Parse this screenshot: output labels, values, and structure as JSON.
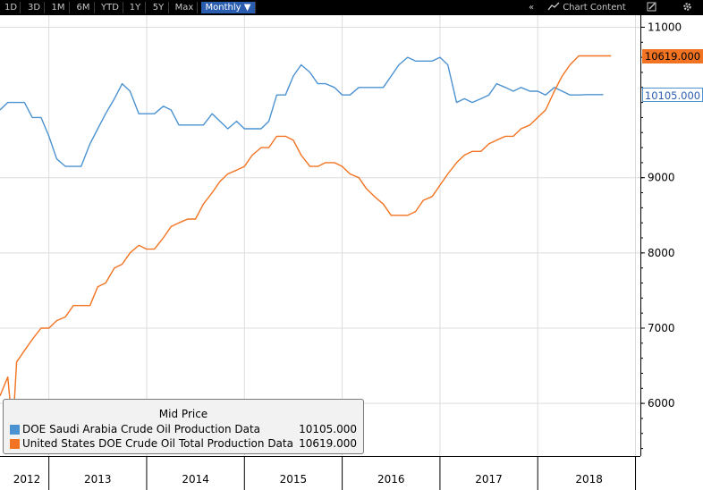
{
  "toolbar": {
    "ranges": [
      "1D",
      "3D",
      "1M",
      "6M",
      "YTD",
      "1Y",
      "5Y",
      "Max"
    ],
    "frequency": "Monthly",
    "collapse_glyph": "«",
    "chart_content_label": "Chart Content",
    "icons": [
      "chart-icon",
      "edit-icon",
      "gear-icon"
    ]
  },
  "colors": {
    "saudi": "#4b92d1",
    "us": "#f27321",
    "toolbar_bg": "#000000",
    "selected_bg": "#2a5db0"
  },
  "legend": {
    "title": "Mid Price",
    "items": [
      {
        "name": "DOE Saudi Arabia Crude Oil Production Data",
        "value": "10105.000"
      },
      {
        "name": "United States DOE Crude Oil Total Production Data",
        "value": "10619.000"
      }
    ]
  },
  "last_value_tags": {
    "us": "10619.000",
    "saudi": "10105.000"
  },
  "chart_data": {
    "type": "line",
    "y_ticks": [
      "11000",
      "9000",
      "8000",
      "7000",
      "6000"
    ],
    "ylim": [
      5300,
      11160
    ],
    "x_labels": [
      "2012",
      "2013",
      "2014",
      "2015",
      "2016",
      "2017",
      "2018"
    ],
    "x_domain": [
      2012.0,
      2018.55
    ],
    "grid": true,
    "legend_position": "bottom-left",
    "series": [
      {
        "name": "DOE Saudi Arabia Crude Oil Production Data",
        "x": [
          2012.0,
          2012.08,
          2012.17,
          2012.25,
          2012.33,
          2012.42,
          2012.5,
          2012.58,
          2012.67,
          2012.75,
          2012.83,
          2012.92,
          2013.0,
          2013.08,
          2013.17,
          2013.25,
          2013.33,
          2013.42,
          2013.5,
          2013.58,
          2013.67,
          2013.75,
          2013.83,
          2013.92,
          2014.0,
          2014.08,
          2014.17,
          2014.25,
          2014.33,
          2014.42,
          2014.5,
          2014.58,
          2014.67,
          2014.75,
          2014.83,
          2014.92,
          2015.0,
          2015.08,
          2015.17,
          2015.25,
          2015.33,
          2015.42,
          2015.5,
          2015.58,
          2015.67,
          2015.75,
          2015.83,
          2015.92,
          2016.0,
          2016.08,
          2016.17,
          2016.25,
          2016.33,
          2016.42,
          2016.5,
          2016.58,
          2016.67,
          2016.75,
          2016.83,
          2016.92,
          2017.0,
          2017.08,
          2017.17,
          2017.25,
          2017.33,
          2017.42,
          2017.5,
          2017.58,
          2017.67,
          2017.75,
          2017.83,
          2017.92,
          2018.0,
          2018.08,
          2018.17
        ],
        "y": [
          9900,
          10000,
          10000,
          10000,
          9800,
          9800,
          9550,
          9250,
          9150,
          9150,
          9150,
          9450,
          9650,
          9850,
          10050,
          10250,
          10150,
          9850,
          9850,
          9850,
          9950,
          9900,
          9700,
          9700,
          9700,
          9700,
          9850,
          9750,
          9650,
          9750,
          9650,
          9650,
          9650,
          9750,
          10100,
          10100,
          10350,
          10500,
          10400,
          10250,
          10250,
          10200,
          10100,
          10100,
          10200,
          10200,
          10200,
          10200,
          10350,
          10500,
          10600,
          10550,
          10550,
          10550,
          10600,
          10500,
          10000,
          10050,
          10000,
          10050,
          10100,
          10250,
          10200,
          10150,
          10200,
          10150,
          10150,
          10100,
          10200,
          10150,
          10100,
          10100,
          10105,
          10105,
          10105
        ]
      },
      {
        "name": "United States DOE Crude Oil Total Production Data",
        "x": [
          2012.0,
          2012.08,
          2012.13,
          2012.17,
          2012.25,
          2012.33,
          2012.42,
          2012.5,
          2012.58,
          2012.67,
          2012.75,
          2012.83,
          2012.92,
          2013.0,
          2013.08,
          2013.17,
          2013.25,
          2013.33,
          2013.42,
          2013.5,
          2013.58,
          2013.67,
          2013.75,
          2013.83,
          2013.92,
          2014.0,
          2014.08,
          2014.17,
          2014.25,
          2014.33,
          2014.42,
          2014.5,
          2014.58,
          2014.67,
          2014.75,
          2014.83,
          2014.92,
          2015.0,
          2015.08,
          2015.17,
          2015.25,
          2015.33,
          2015.42,
          2015.5,
          2015.58,
          2015.67,
          2015.75,
          2015.83,
          2015.92,
          2016.0,
          2016.08,
          2016.17,
          2016.25,
          2016.33,
          2016.42,
          2016.5,
          2016.58,
          2016.67,
          2016.75,
          2016.83,
          2016.92,
          2017.0,
          2017.08,
          2017.17,
          2017.25,
          2017.33,
          2017.42,
          2017.5,
          2017.58,
          2017.67,
          2017.75,
          2017.83,
          2017.92,
          2018.0,
          2018.08,
          2018.17,
          2018.25
        ],
        "y": [
          6100,
          6350,
          5650,
          6550,
          6700,
          6850,
          7000,
          7000,
          7100,
          7150,
          7300,
          7300,
          7300,
          7550,
          7600,
          7800,
          7850,
          8000,
          8100,
          8050,
          8050,
          8200,
          8350,
          8400,
          8450,
          8450,
          8650,
          8800,
          8950,
          9050,
          9100,
          9150,
          9300,
          9400,
          9400,
          9550,
          9550,
          9500,
          9300,
          9150,
          9150,
          9200,
          9200,
          9150,
          9050,
          9000,
          8850,
          8750,
          8650,
          8500,
          8500,
          8500,
          8550,
          8700,
          8750,
          8900,
          9050,
          9200,
          9300,
          9350,
          9350,
          9450,
          9500,
          9550,
          9550,
          9650,
          9700,
          9800,
          9900,
          10150,
          10350,
          10500,
          10619,
          10619,
          10619,
          10619,
          10619
        ]
      }
    ]
  }
}
